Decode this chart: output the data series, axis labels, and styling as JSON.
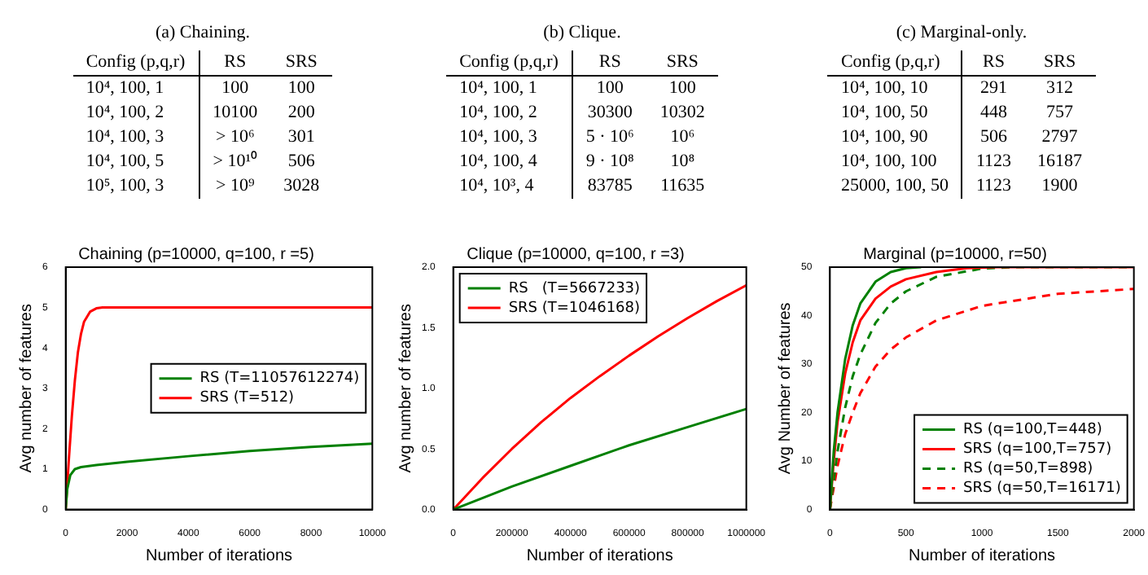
{
  "chart_data": [
    {
      "type": "other",
      "title": "(a) Chaining.",
      "annotations": [
        "Config (p,q,r)",
        "RS",
        "SRS",
        "10⁴, 100, 1",
        "100",
        "100",
        "10⁴, 100, 2",
        "10100",
        "200",
        "10⁴, 100, 3",
        "> 10⁶",
        "301",
        "10⁴, 100, 5",
        "> 10¹⁰",
        "506",
        "10⁵, 100, 3",
        "> 10⁹",
        "3028"
      ]
    },
    {
      "type": "other",
      "title": "(b) Clique.",
      "annotations": [
        "Config (p,q,r)",
        "RS",
        "SRS",
        "10⁴, 100, 1",
        "100",
        "100",
        "10⁴, 100, 2",
        "30300",
        "10302",
        "10⁴, 100, 3",
        "5 · 10⁶",
        "10⁶",
        "10⁴, 100, 4",
        "9 · 10⁸",
        "10⁸",
        "10⁴, 10³, 4",
        "83785",
        "11635"
      ]
    },
    {
      "type": "other",
      "title": "(c) Marginal-only.",
      "annotations": [
        "Config (p,q,r)",
        "RS",
        "SRS",
        "10⁴, 100, 10",
        "291",
        "312",
        "10⁴, 100, 50",
        "448",
        "757",
        "10⁴, 100, 90",
        "506",
        "2797",
        "10⁴, 100, 100",
        "1123",
        "16187",
        "25000, 100, 50",
        "1123",
        "1900"
      ]
    },
    {
      "type": "line",
      "title": "Chaining (p=10000, q=100, r =5)",
      "xlabel": "Number of iterations",
      "ylabel": "Avg number of features",
      "xlim": [
        0,
        10000
      ],
      "xticks": [
        0,
        2000,
        4000,
        6000,
        8000,
        10000
      ],
      "ylim": [
        0,
        6
      ],
      "yticks": [
        0,
        1,
        2,
        3,
        4,
        5,
        6
      ],
      "legend": "right",
      "marker": "none",
      "series": [
        {
          "name": "RS (T=11057612274)",
          "color": "#008000",
          "x": [
            0,
            50,
            150,
            300,
            500,
            1000,
            2000,
            4000,
            6000,
            8000,
            10000
          ],
          "values": [
            0,
            0.5,
            0.85,
            1.0,
            1.05,
            1.1,
            1.18,
            1.32,
            1.45,
            1.55,
            1.63
          ]
        },
        {
          "name": "SRS (T=512)",
          "color": "#ff0000",
          "x": [
            0,
            100,
            200,
            300,
            400,
            500,
            600,
            800,
            1000,
            1200,
            10000
          ],
          "values": [
            0,
            1.2,
            2.3,
            3.2,
            3.9,
            4.35,
            4.65,
            4.9,
            4.98,
            5,
            5
          ]
        }
      ]
    },
    {
      "type": "line",
      "title": "Clique (p=10000, q=100, r =3)",
      "xlabel": "Number of iterations",
      "ylabel": "Avg number of features",
      "xlim": [
        0,
        1000000
      ],
      "xticks": [
        0,
        200000,
        400000,
        600000,
        800000,
        1000000
      ],
      "ylim": [
        0,
        2
      ],
      "yticks": [
        {
          "value": 0,
          "label": "0.0"
        },
        0.5,
        {
          "value": 1,
          "label": "1.0"
        },
        1.5,
        {
          "value": 2,
          "label": "2.0"
        }
      ],
      "legend": "top left",
      "marker": "none",
      "series": [
        {
          "name": "RS   (T=5667233)",
          "color": "#008000",
          "x": [
            0,
            200000,
            400000,
            600000,
            800000,
            1000000
          ],
          "values": [
            0,
            0.19,
            0.36,
            0.53,
            0.68,
            0.83
          ]
        },
        {
          "name": "SRS (T=1046168)",
          "color": "#ff0000",
          "x": [
            0,
            100000,
            200000,
            300000,
            400000,
            500000,
            600000,
            700000,
            800000,
            900000,
            1000000
          ],
          "values": [
            0,
            0.26,
            0.5,
            0.72,
            0.92,
            1.1,
            1.27,
            1.43,
            1.58,
            1.72,
            1.85
          ]
        }
      ]
    },
    {
      "type": "line",
      "title": "Marginal (p=10000, r=50)",
      "xlabel": "Number of iterations",
      "ylabel": "Avg Number of features",
      "xlim": [
        0,
        2000
      ],
      "xticks": [
        0,
        500,
        1000,
        1500,
        2000
      ],
      "ylim": [
        0,
        50
      ],
      "yticks": [
        0,
        10,
        20,
        30,
        40,
        50
      ],
      "legend": "bottom right",
      "marker": "none",
      "series": [
        {
          "name": "RS (q=100,T=448)",
          "color": "#008000",
          "line_style": "solid",
          "x": [
            0,
            25,
            50,
            100,
            150,
            200,
            300,
            400,
            500,
            600
          ],
          "values": [
            0,
            12,
            20,
            31,
            38,
            42.5,
            47,
            49,
            49.8,
            50
          ]
        },
        {
          "name": "SRS (q=100,T=757)",
          "color": "#ff0000",
          "line_style": "solid",
          "x": [
            0,
            25,
            50,
            100,
            150,
            200,
            300,
            400,
            500,
            700,
            900,
            1100,
            2000
          ],
          "values": [
            0,
            10,
            18,
            28,
            34.5,
            39,
            43.5,
            46,
            47.5,
            49,
            49.8,
            50,
            50
          ]
        },
        {
          "name": "RS (q=50,T=898)",
          "color": "#008000",
          "line_style": "dashed",
          "x": [
            0,
            50,
            100,
            150,
            200,
            300,
            400,
            500,
            700,
            1000,
            1200,
            2000
          ],
          "values": [
            0,
            12,
            21,
            27.5,
            32,
            38.5,
            42.5,
            45,
            48,
            49.7,
            50,
            50
          ]
        },
        {
          "name": "SRS (q=50,T=16171)",
          "color": "#ff0000",
          "line_style": "dashed",
          "x": [
            0,
            50,
            100,
            150,
            200,
            300,
            400,
            500,
            700,
            1000,
            1500,
            2000
          ],
          "values": [
            0,
            9,
            15.5,
            20,
            24,
            29.5,
            33,
            35.5,
            39,
            42,
            44.5,
            45.5
          ]
        }
      ]
    }
  ]
}
